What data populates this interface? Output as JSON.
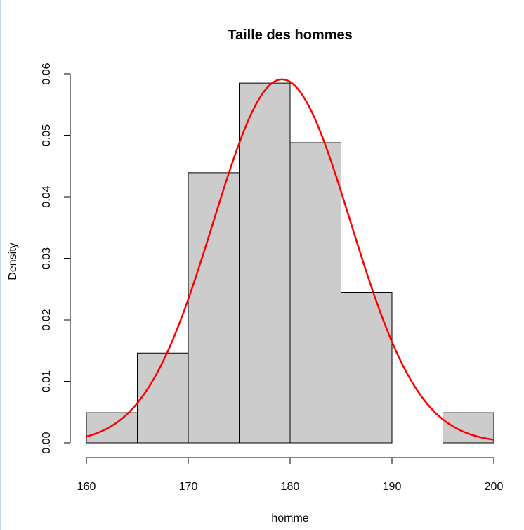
{
  "chart_data": {
    "type": "bar",
    "title": "Taille des hommes",
    "xlabel": "homme",
    "ylabel": "Density",
    "bins": [
      {
        "x0": 160,
        "x1": 165,
        "density": 0.0049
      },
      {
        "x0": 165,
        "x1": 170,
        "density": 0.0146
      },
      {
        "x0": 170,
        "x1": 175,
        "density": 0.0439
      },
      {
        "x0": 175,
        "x1": 180,
        "density": 0.0585
      },
      {
        "x0": 180,
        "x1": 185,
        "density": 0.0488
      },
      {
        "x0": 185,
        "x1": 190,
        "density": 0.0244
      },
      {
        "x0": 190,
        "x1": 195,
        "density": 0.0
      },
      {
        "x0": 195,
        "x1": 200,
        "density": 0.0049
      }
    ],
    "curve": {
      "type": "normal-density",
      "mean": 179.2,
      "sd": 6.75
    },
    "xlim": [
      160,
      200
    ],
    "ylim": [
      0,
      0.06
    ],
    "xticks": [
      "160",
      "170",
      "180",
      "190",
      "200"
    ],
    "yticks": [
      "0.00",
      "0.01",
      "0.02",
      "0.03",
      "0.04",
      "0.05",
      "0.06"
    ],
    "bar_fill": "#cccccc",
    "bar_stroke": "#000000",
    "curve_color": "#ff0000",
    "grid": false
  }
}
